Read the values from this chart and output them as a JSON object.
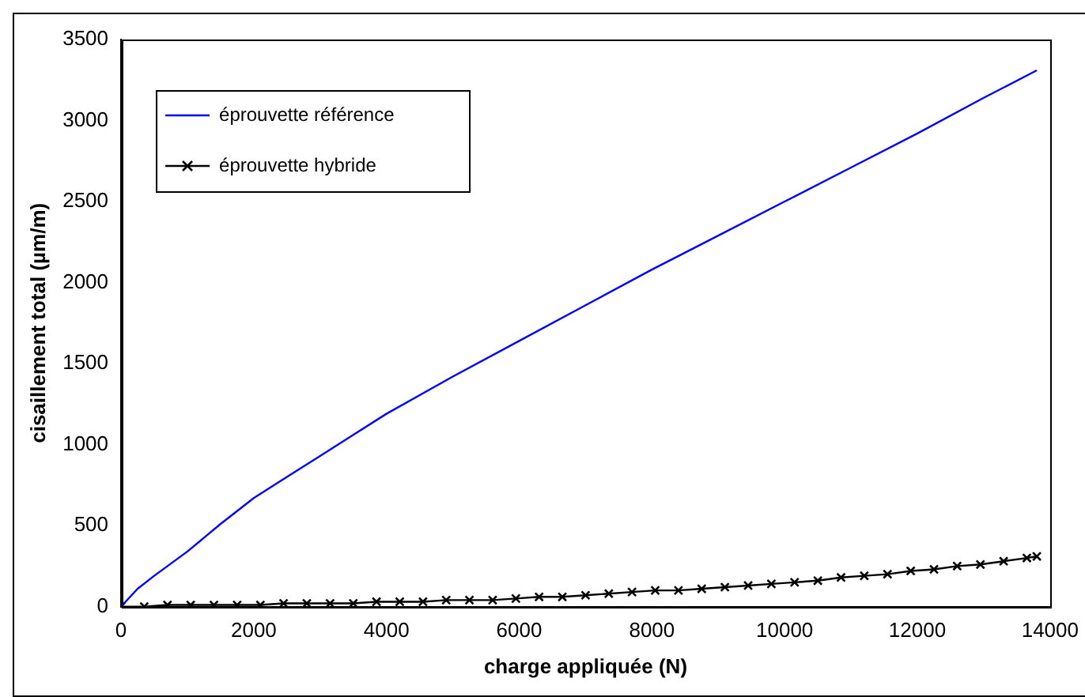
{
  "chart_data": {
    "type": "line",
    "xlabel": "charge appliquée (N)",
    "ylabel": "cisaillement total (µm/m)",
    "xlim": [
      0,
      14000
    ],
    "xticks": [
      0,
      2000,
      4000,
      6000,
      8000,
      10000,
      12000,
      14000
    ],
    "ylim": [
      0,
      3500
    ],
    "yticks": [
      0,
      500,
      1000,
      1500,
      2000,
      2500,
      3000,
      3500
    ],
    "grid": false,
    "legend": "top left",
    "line_style": "solid",
    "series": [
      {
        "name": "éprouvette référence",
        "color": "#0000ff",
        "marker": "none",
        "x": [
          0,
          250,
          500,
          1000,
          1500,
          2000,
          2500,
          3000,
          3500,
          4000,
          5000,
          6000,
          7000,
          8000,
          9000,
          10000,
          11000,
          12000,
          13000,
          13800
        ],
        "values": [
          0,
          110,
          190,
          340,
          510,
          670,
          800,
          930,
          1060,
          1190,
          1420,
          1640,
          1860,
          2080,
          2290,
          2500,
          2710,
          2920,
          3140,
          3310
        ]
      },
      {
        "name": "éprouvette hybride",
        "color": "#000000",
        "marker": "cross",
        "x": [
          0,
          350,
          700,
          1050,
          1400,
          1750,
          2100,
          2450,
          2800,
          3150,
          3500,
          3850,
          4200,
          4550,
          4900,
          5250,
          5600,
          5950,
          6300,
          6650,
          7000,
          7350,
          7700,
          8050,
          8400,
          8750,
          9100,
          9450,
          9800,
          10150,
          10500,
          10850,
          11200,
          11550,
          11900,
          12250,
          12600,
          12950,
          13300,
          13650,
          13800
        ],
        "values": [
          0,
          0,
          10,
          10,
          10,
          10,
          10,
          20,
          20,
          20,
          20,
          30,
          30,
          30,
          40,
          40,
          40,
          50,
          60,
          60,
          70,
          80,
          90,
          100,
          100,
          110,
          120,
          130,
          140,
          150,
          160,
          180,
          190,
          200,
          220,
          230,
          250,
          260,
          280,
          300,
          310
        ]
      }
    ]
  }
}
